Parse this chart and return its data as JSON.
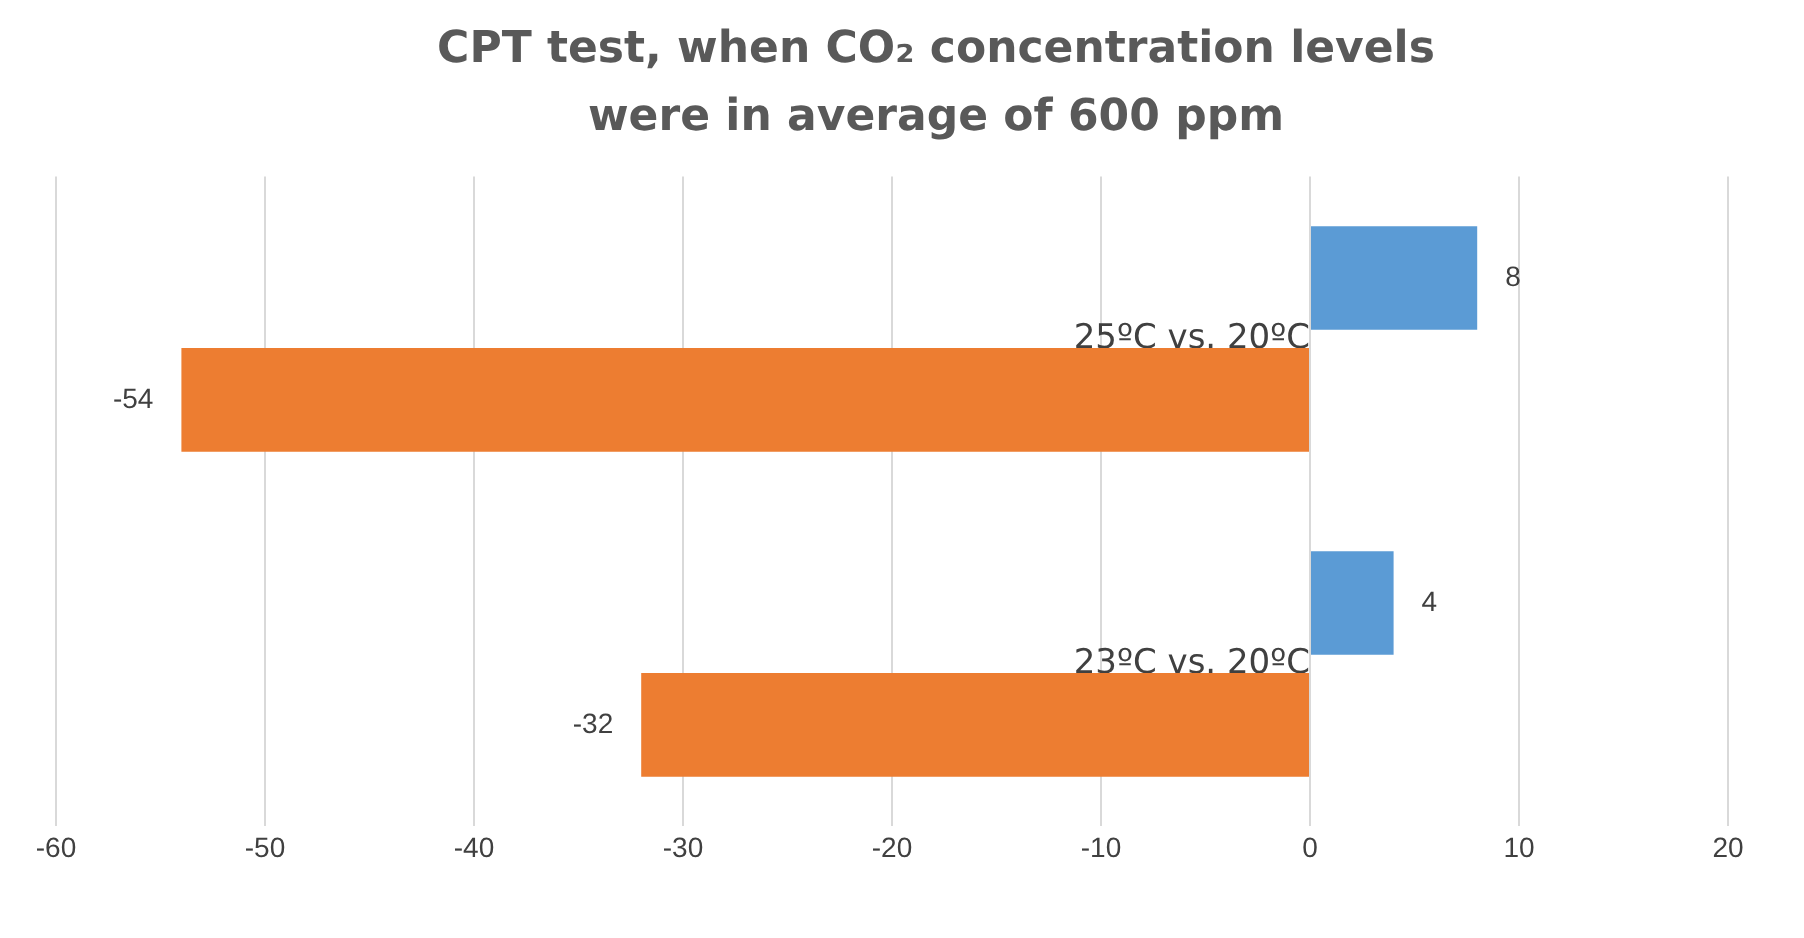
{
  "chart_data": {
    "type": "bar",
    "orientation": "horizontal",
    "title": "CPT test, when CO₂ concentration levels were in average of 600 ppm",
    "categories": [
      "25ºC vs. 20ºC",
      "23ºC vs. 20ºC"
    ],
    "series": [
      {
        "color": "#5b9bd5",
        "values": [
          8,
          4
        ]
      },
      {
        "color": "#ed7d31",
        "values": [
          -54,
          -32
        ]
      }
    ],
    "xlim": [
      -60,
      20
    ],
    "xticks": [
      -60,
      -50,
      -40,
      -30,
      -20,
      -10,
      0,
      10,
      20
    ],
    "grid": "x",
    "data_labels": true,
    "legend": false
  }
}
